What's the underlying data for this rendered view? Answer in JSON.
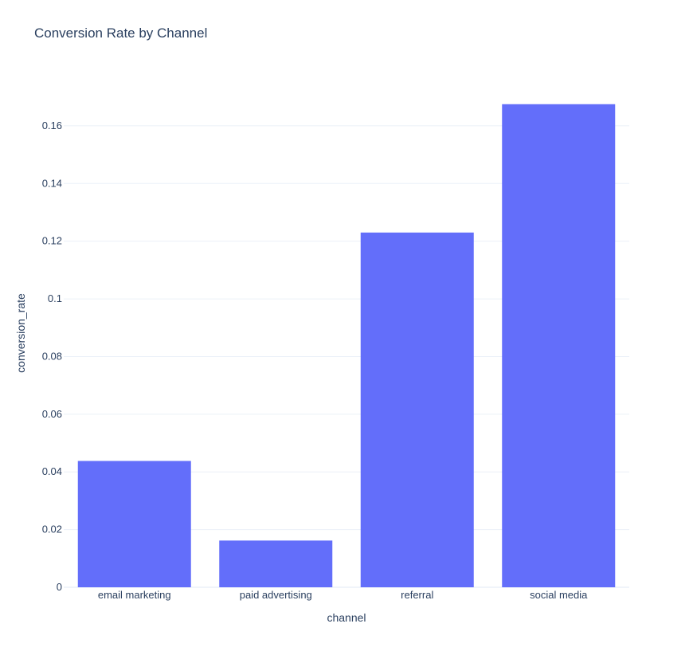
{
  "chart_data": {
    "type": "bar",
    "title": "Conversion Rate by Channel",
    "xlabel": "channel",
    "ylabel": "conversion_rate",
    "categories": [
      "email marketing",
      "paid advertising",
      "referral",
      "social media"
    ],
    "values": [
      0.0438,
      0.0162,
      0.123,
      0.1675
    ],
    "ylim": [
      0,
      0.176
    ],
    "yticks": [
      0,
      0.02,
      0.04,
      0.06,
      0.08,
      0.1,
      0.12,
      0.14,
      0.16
    ],
    "ytick_labels": [
      "0",
      "0.02",
      "0.04",
      "0.06",
      "0.08",
      "0.1",
      "0.12",
      "0.14",
      "0.16"
    ],
    "grid": true,
    "legend": "none",
    "colors": {
      "bar": "#636efa",
      "grid": "#ebf0f8",
      "text": "#2a3f5f",
      "zeroline": "#ebf0f8"
    }
  }
}
